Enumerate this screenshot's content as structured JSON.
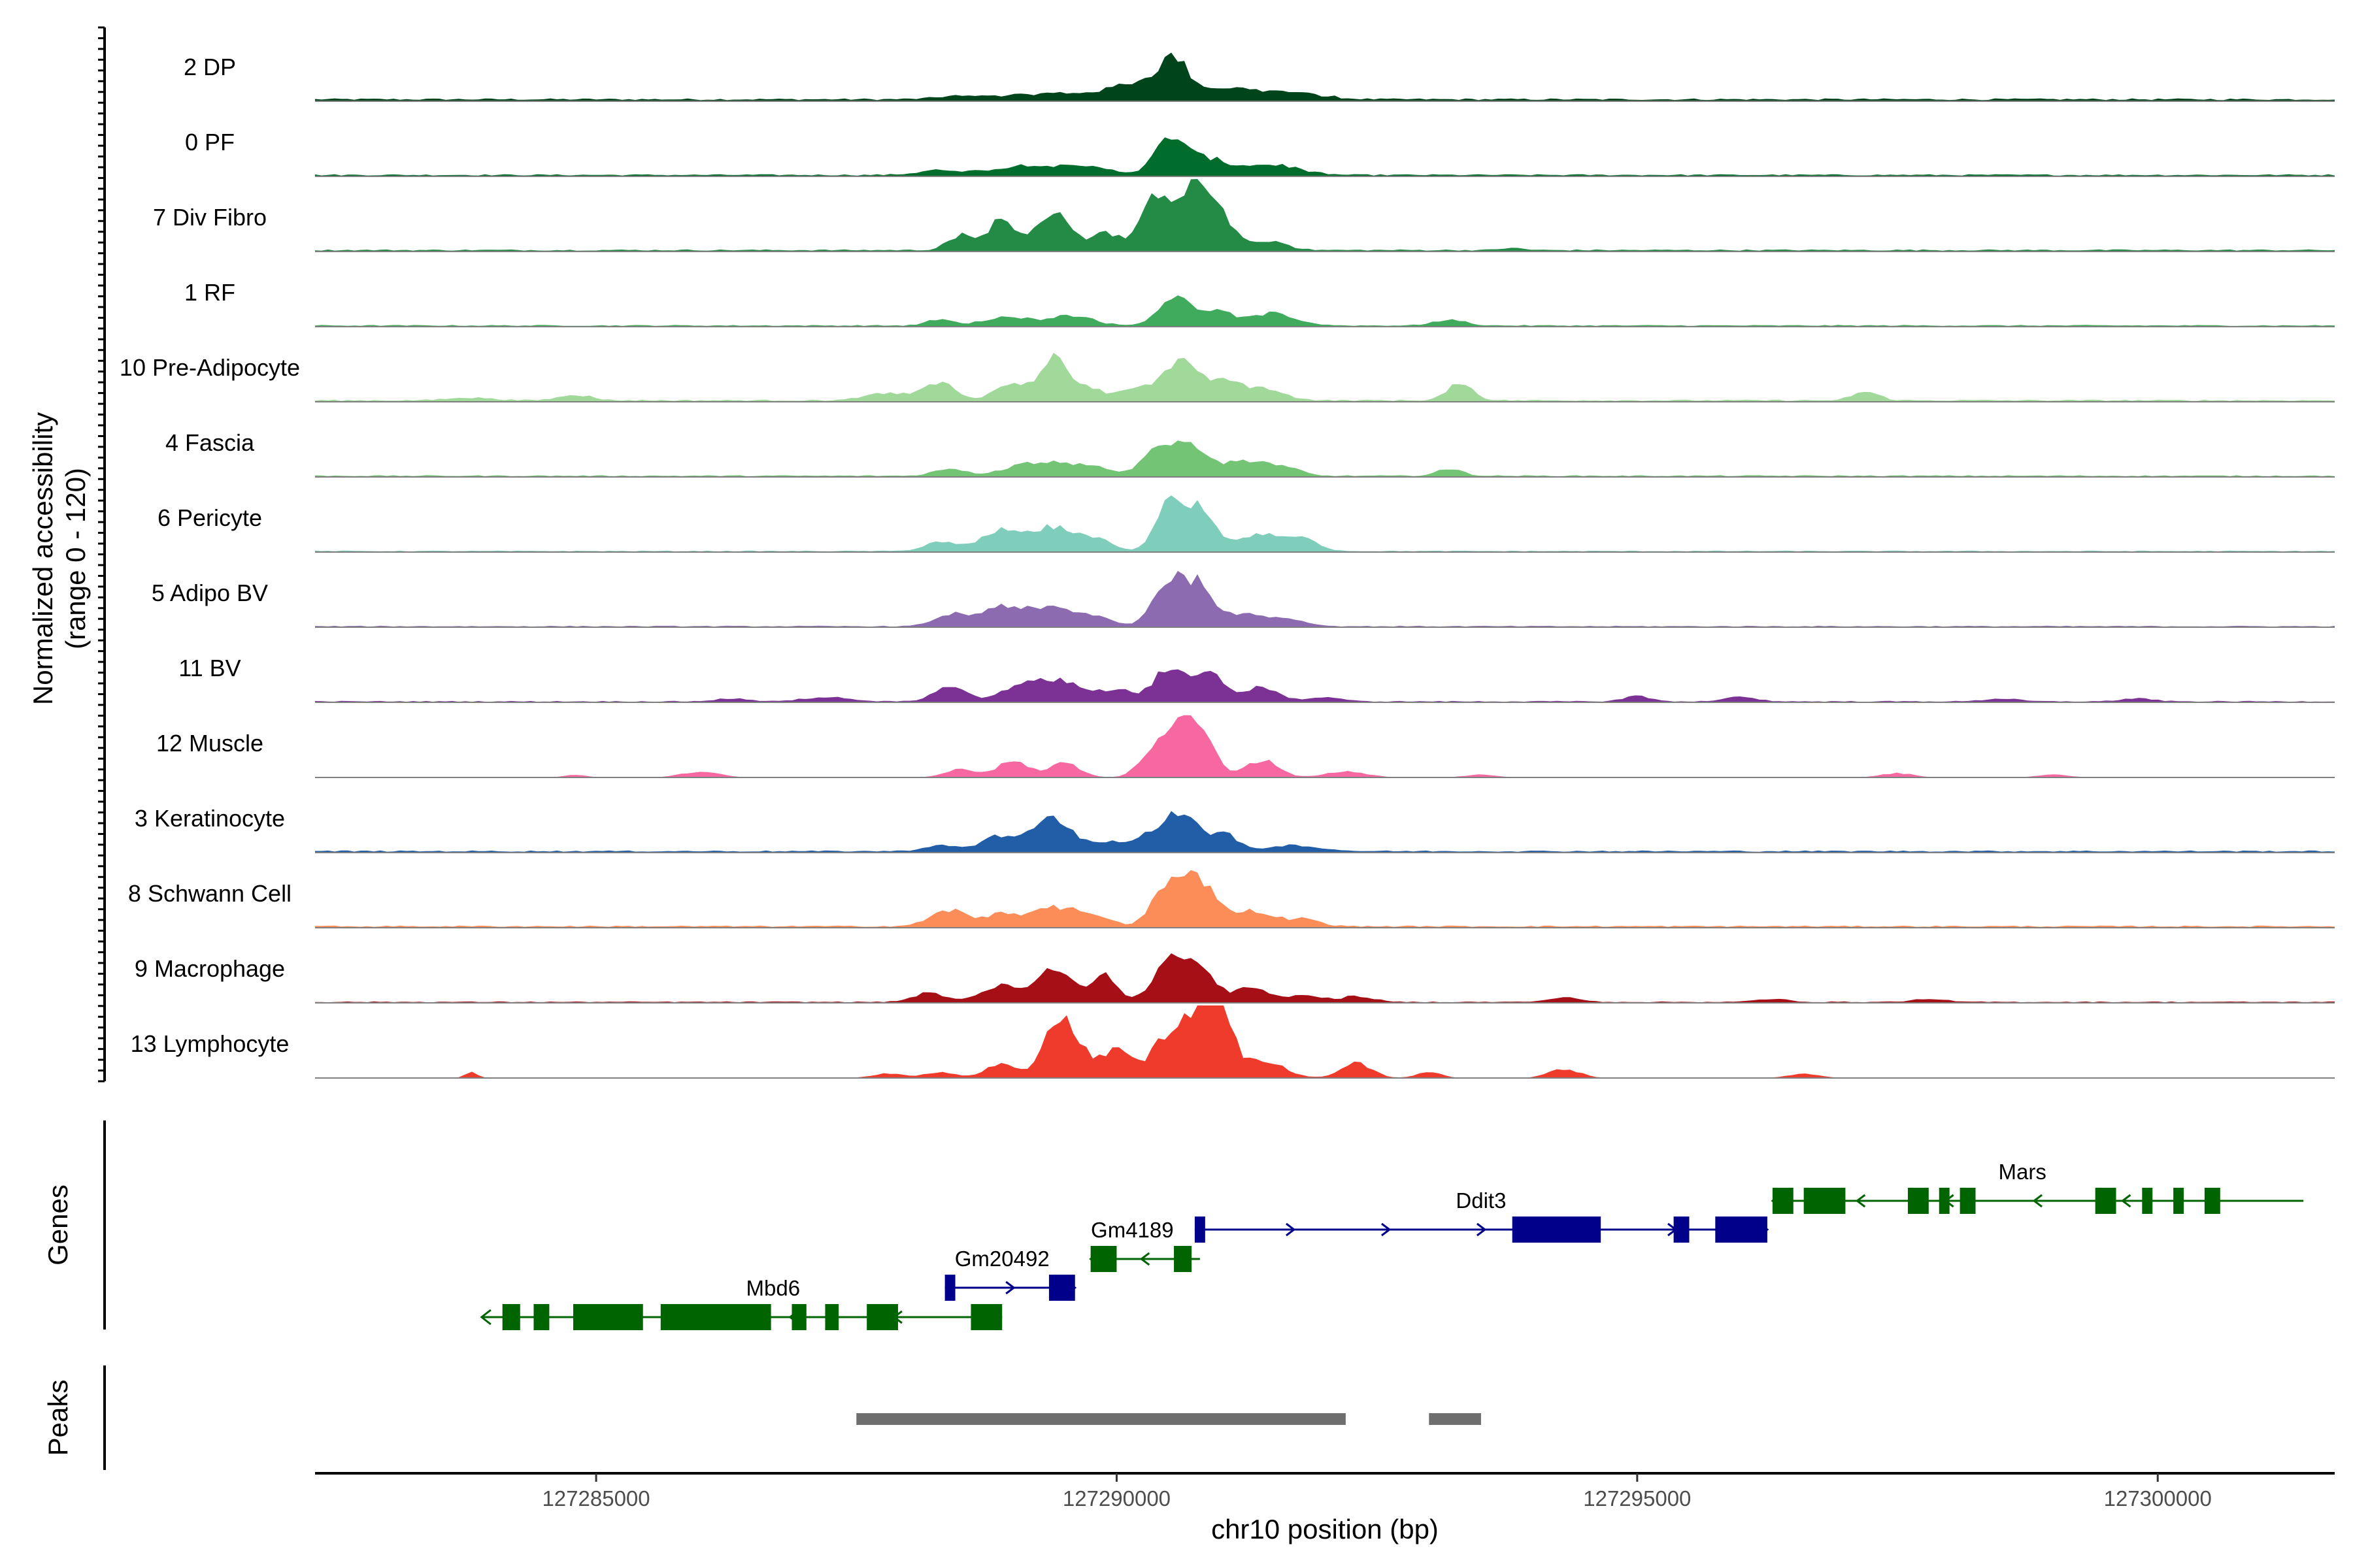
{
  "chart_data": {
    "type": "area",
    "chromosome": "chr10",
    "xlabel": "chr10 position (bp)",
    "ylabel": "Normalized accessibility",
    "ylabel_range": "(range 0 - 120)",
    "ylim": [
      0,
      120
    ],
    "xlim": [
      127282300,
      127301700
    ],
    "x_ticks": [
      127285000,
      127290000,
      127295000,
      127300000
    ],
    "x_tick_labels": [
      "127285000",
      "127290000",
      "127295000",
      "127300000"
    ],
    "tracks": [
      {
        "name": "2 DP",
        "color": "#00441b",
        "baseline": 2,
        "peaks": [
          [
            127288500,
            2,
            220
          ],
          [
            127289400,
            4,
            450
          ],
          [
            127290550,
            20,
            130
          ],
          [
            127290300,
            12,
            300
          ],
          [
            127291100,
            7,
            300
          ],
          [
            127291700,
            4,
            280
          ]
        ]
      },
      {
        "name": "0 PF",
        "color": "#006d2c",
        "baseline": 1.5,
        "peaks": [
          [
            127288300,
            3,
            200
          ],
          [
            127289200,
            7,
            350
          ],
          [
            127289800,
            4,
            200
          ],
          [
            127290500,
            21,
            130
          ],
          [
            127290800,
            12,
            250
          ],
          [
            127291500,
            7,
            250
          ]
        ]
      },
      {
        "name": "7 Div Fibro",
        "color": "#238b45",
        "baseline": 1.5,
        "peaks": [
          [
            127288500,
            10,
            120
          ],
          [
            127288900,
            22,
            130
          ],
          [
            127289400,
            28,
            150
          ],
          [
            127289900,
            12,
            150
          ],
          [
            127290400,
            39,
            140
          ],
          [
            127290750,
            42,
            140
          ],
          [
            127291000,
            20,
            150
          ],
          [
            127291500,
            6,
            150
          ],
          [
            127293800,
            1.5,
            100
          ]
        ]
      },
      {
        "name": "1 RF",
        "color": "#41ab5d",
        "baseline": 1.2,
        "peaks": [
          [
            127288300,
            4,
            120
          ],
          [
            127289000,
            6,
            250
          ],
          [
            127289600,
            7,
            180
          ],
          [
            127290550,
            20,
            150
          ],
          [
            127290950,
            10,
            150
          ],
          [
            127291500,
            8,
            220
          ],
          [
            127293200,
            4,
            150
          ]
        ]
      },
      {
        "name": "10 Pre-Adipocyte",
        "color": "#a1d99b",
        "baseline": 1.5,
        "peaks": [
          [
            127283800,
            2,
            200
          ],
          [
            127284800,
            4,
            150
          ],
          [
            127287800,
            5,
            200
          ],
          [
            127288300,
            12,
            150
          ],
          [
            127289000,
            13,
            150
          ],
          [
            127289400,
            28,
            120
          ],
          [
            127289700,
            10,
            150
          ],
          [
            127290200,
            10,
            150
          ],
          [
            127290600,
            26,
            150
          ],
          [
            127291000,
            14,
            150
          ],
          [
            127291400,
            8,
            200
          ],
          [
            127293300,
            12,
            120
          ],
          [
            127297200,
            6,
            120
          ]
        ]
      },
      {
        "name": "4 Fascia",
        "color": "#74c476",
        "baseline": 1.2,
        "peaks": [
          [
            127288400,
            5,
            150
          ],
          [
            127289200,
            9,
            250
          ],
          [
            127289700,
            7,
            200
          ],
          [
            127290400,
            18,
            150
          ],
          [
            127290700,
            22,
            150
          ],
          [
            127291200,
            11,
            200
          ],
          [
            127291600,
            6,
            150
          ],
          [
            127293200,
            5,
            120
          ]
        ]
      },
      {
        "name": "6 Pericyte",
        "color": "#7fcdbb",
        "baseline": 1,
        "peaks": [
          [
            127288300,
            6,
            150
          ],
          [
            127288900,
            14,
            200
          ],
          [
            127289400,
            16,
            180
          ],
          [
            127289800,
            8,
            150
          ],
          [
            127290500,
            32,
            130
          ],
          [
            127290800,
            28,
            130
          ],
          [
            127291400,
            12,
            250
          ],
          [
            127291800,
            6,
            150
          ]
        ]
      },
      {
        "name": "5 Adipo BV",
        "color": "#8c6bb1",
        "baseline": 1,
        "peaks": [
          [
            127288400,
            8,
            150
          ],
          [
            127288900,
            14,
            200
          ],
          [
            127289400,
            12,
            200
          ],
          [
            127289800,
            6,
            150
          ],
          [
            127290500,
            30,
            150
          ],
          [
            127290800,
            26,
            150
          ],
          [
            127291300,
            8,
            200
          ],
          [
            127291700,
            4,
            150
          ]
        ]
      },
      {
        "name": "11 BV",
        "color": "#7b3294",
        "baseline": 1,
        "peaks": [
          [
            127286300,
            2,
            150
          ],
          [
            127287200,
            3,
            200
          ],
          [
            127288400,
            10,
            150
          ],
          [
            127289100,
            11,
            200
          ],
          [
            127289500,
            13,
            200
          ],
          [
            127290000,
            8,
            150
          ],
          [
            127290500,
            22,
            150
          ],
          [
            127290900,
            18,
            150
          ],
          [
            127291400,
            10,
            150
          ],
          [
            127292000,
            3,
            150
          ],
          [
            127295000,
            4,
            120
          ],
          [
            127296000,
            3,
            150
          ],
          [
            127298500,
            2,
            150
          ],
          [
            127299800,
            2,
            150
          ]
        ]
      },
      {
        "name": "12 Muscle",
        "color": "#f768a1",
        "baseline": 0,
        "peaks": [
          [
            127284800,
            2,
            100
          ],
          [
            127286000,
            4,
            180
          ],
          [
            127288500,
            6,
            150
          ],
          [
            127289000,
            11,
            150
          ],
          [
            127289500,
            10,
            150
          ],
          [
            127290300,
            14,
            120
          ],
          [
            127290600,
            33,
            150
          ],
          [
            127290800,
            26,
            150
          ],
          [
            127291400,
            12,
            150
          ],
          [
            127292200,
            4,
            200
          ],
          [
            127293500,
            2,
            150
          ],
          [
            127297500,
            3,
            150
          ],
          [
            127299000,
            2,
            150
          ]
        ]
      },
      {
        "name": "3 Keratinocyte",
        "color": "#225ea8",
        "baseline": 1.5,
        "peaks": [
          [
            127288300,
            4,
            150
          ],
          [
            127288900,
            10,
            200
          ],
          [
            127289400,
            22,
            180
          ],
          [
            127289900,
            6,
            150
          ],
          [
            127290300,
            10,
            150
          ],
          [
            127290600,
            26,
            150
          ],
          [
            127291000,
            12,
            150
          ],
          [
            127291700,
            4,
            250
          ]
        ]
      },
      {
        "name": "8 Schwann Cell",
        "color": "#fc8d59",
        "baseline": 1.5,
        "peaks": [
          [
            127288400,
            11,
            180
          ],
          [
            127288900,
            9,
            150
          ],
          [
            127289400,
            13,
            200
          ],
          [
            127289800,
            7,
            150
          ],
          [
            127290500,
            28,
            150
          ],
          [
            127290800,
            30,
            150
          ],
          [
            127291300,
            11,
            200
          ],
          [
            127291800,
            5,
            150
          ]
        ]
      },
      {
        "name": "9 Macrophage",
        "color": "#a50f15",
        "baseline": 1,
        "peaks": [
          [
            127288200,
            6,
            150
          ],
          [
            127288900,
            11,
            200
          ],
          [
            127289400,
            22,
            150
          ],
          [
            127289800,
            8,
            150
          ],
          [
            127289900,
            14,
            100
          ],
          [
            127290500,
            28,
            150
          ],
          [
            127290800,
            22,
            150
          ],
          [
            127291300,
            10,
            150
          ],
          [
            127291800,
            5,
            150
          ],
          [
            127292300,
            4,
            150
          ],
          [
            127294300,
            3,
            150
          ],
          [
            127296300,
            2,
            150
          ],
          [
            127297800,
            2,
            150
          ]
        ]
      },
      {
        "name": "13 Lymphocyte",
        "color": "#ef3b2c",
        "baseline": 0,
        "peaks": [
          [
            127283800,
            4,
            60
          ],
          [
            127287800,
            3,
            150
          ],
          [
            127288300,
            4,
            150
          ],
          [
            127288900,
            10,
            150
          ],
          [
            127289400,
            36,
            120
          ],
          [
            127289600,
            22,
            120
          ],
          [
            127290000,
            20,
            150
          ],
          [
            127290500,
            30,
            150
          ],
          [
            127290800,
            46,
            120
          ],
          [
            127291000,
            40,
            120
          ],
          [
            127291400,
            12,
            200
          ],
          [
            127292300,
            10,
            150
          ],
          [
            127293000,
            4,
            120
          ],
          [
            127294300,
            6,
            150
          ],
          [
            127296600,
            3,
            150
          ]
        ]
      }
    ],
    "genes": [
      {
        "name": "Mbd6",
        "strand": "-",
        "color": "#006400",
        "row": 1,
        "start": 127283900,
        "end": 127288900,
        "exons": [
          [
            127284100,
            127284270
          ],
          [
            127284400,
            127284550
          ],
          [
            127284780,
            127285450
          ],
          [
            127285620,
            127286680
          ],
          [
            127286880,
            127287020
          ],
          [
            127287200,
            127287330
          ],
          [
            127287600,
            127287900
          ],
          [
            127288600,
            127288900
          ]
        ]
      },
      {
        "name": "Gm20492",
        "strand": "+",
        "color": "#00008b",
        "row": 2,
        "start": 127288350,
        "end": 127289600,
        "exons": [
          [
            127288350,
            127288450
          ],
          [
            127289350,
            127289600
          ]
        ]
      },
      {
        "name": "Gm4189",
        "strand": "-",
        "color": "#006400",
        "row": 3,
        "start": 127289750,
        "end": 127290800,
        "exons": [
          [
            127289750,
            127290000
          ],
          [
            127290550,
            127290720
          ]
        ]
      },
      {
        "name": "Ddit3",
        "strand": "+",
        "color": "#00008b",
        "row": 4,
        "start": 127290750,
        "end": 127296250,
        "exons": [
          [
            127290750,
            127290850
          ],
          [
            127293800,
            127294650
          ],
          [
            127295350,
            127295500
          ],
          [
            127295750,
            127296250
          ]
        ]
      },
      {
        "name": "Mars",
        "strand": "-",
        "color": "#006400",
        "row": 5,
        "start": 127296300,
        "end": 127301400,
        "exons": [
          [
            127296300,
            127296500
          ],
          [
            127296600,
            127297000
          ],
          [
            127297600,
            127297800
          ],
          [
            127297900,
            127298000
          ],
          [
            127298100,
            127298250
          ],
          [
            127299400,
            127299600
          ],
          [
            127299850,
            127299950
          ],
          [
            127300150,
            127300250
          ],
          [
            127300450,
            127300600
          ]
        ]
      }
    ],
    "peak_regions": [
      [
        127287500,
        127292200
      ],
      [
        127293000,
        127293500
      ]
    ]
  }
}
